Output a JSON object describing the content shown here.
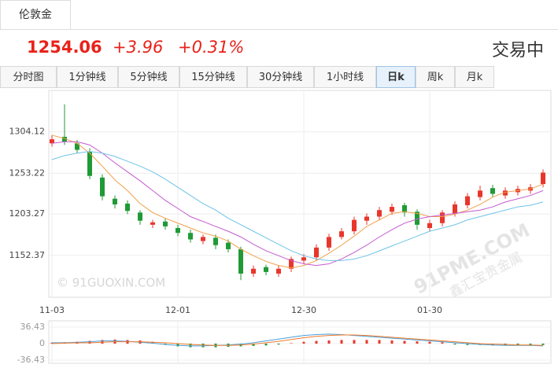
{
  "header": {
    "tab": "伦敦金",
    "price": "1254.06",
    "change": "+3.96",
    "change_pct": "+0.31%",
    "status": "交易中"
  },
  "tabs": [
    "分时图",
    "1分钟线",
    "5分钟线",
    "15分钟线",
    "30分钟线",
    "1小时线",
    "日k",
    "周k",
    "月k"
  ],
  "active_tab": 6,
  "watermarks": [
    "© 91GUOXIN.COM",
    "91PME.COM",
    "鑫汇宝贵金属"
  ],
  "chart_data": [
    {
      "type": "candlestick",
      "categories": [
        "11-03",
        null,
        null,
        null,
        null,
        null,
        null,
        null,
        null,
        null,
        "12-01",
        null,
        null,
        null,
        null,
        null,
        null,
        null,
        null,
        null,
        "12-30",
        null,
        null,
        null,
        null,
        null,
        null,
        null,
        null,
        null,
        "01-30",
        null,
        null,
        null,
        null,
        null,
        null,
        null,
        null,
        null
      ],
      "open": [
        1290,
        1298,
        1290,
        1280,
        1248,
        1222,
        1216,
        1205,
        1190,
        1194,
        1186,
        1180,
        1170,
        1174,
        1168,
        1160,
        1130,
        1138,
        1130,
        1136,
        1146,
        1150,
        1162,
        1175,
        1182,
        1195,
        1200,
        1206,
        1214,
        1206,
        1186,
        1192,
        1204,
        1214,
        1224,
        1235,
        1226,
        1230,
        1232,
        1240
      ],
      "high": [
        1300,
        1338,
        1294,
        1284,
        1252,
        1226,
        1220,
        1208,
        1196,
        1198,
        1190,
        1184,
        1178,
        1178,
        1172,
        1163,
        1140,
        1141,
        1140,
        1151,
        1154,
        1166,
        1179,
        1186,
        1200,
        1204,
        1212,
        1216,
        1217,
        1209,
        1196,
        1208,
        1219,
        1229,
        1238,
        1239,
        1236,
        1238,
        1240,
        1258
      ],
      "low": [
        1286,
        1288,
        1278,
        1246,
        1220,
        1210,
        1203,
        1190,
        1186,
        1184,
        1176,
        1168,
        1166,
        1160,
        1156,
        1122,
        1126,
        1128,
        1126,
        1132,
        1142,
        1146,
        1158,
        1172,
        1178,
        1190,
        1196,
        1202,
        1200,
        1184,
        1182,
        1188,
        1200,
        1210,
        1220,
        1224,
        1222,
        1226,
        1228,
        1236
      ],
      "close": [
        1295,
        1292,
        1282,
        1250,
        1225,
        1215,
        1207,
        1195,
        1193,
        1188,
        1180,
        1172,
        1175,
        1165,
        1160,
        1130,
        1136,
        1132,
        1136,
        1148,
        1150,
        1162,
        1175,
        1182,
        1196,
        1200,
        1208,
        1212,
        1205,
        1190,
        1192,
        1205,
        1215,
        1225,
        1232,
        1228,
        1232,
        1234,
        1236,
        1254.06
      ],
      "up_color": "#e8362c",
      "down_color": "#1f9a36",
      "series": [
        {
          "color": "#f0a04a",
          "values": [
            1300,
            1296,
            1290,
            1278,
            1262,
            1245,
            1232,
            1216,
            1205,
            1198,
            1192,
            1186,
            1180,
            1176,
            1170,
            1160,
            1152,
            1145,
            1140,
            1137,
            1140,
            1146,
            1155,
            1165,
            1176,
            1188,
            1196,
            1204,
            1206,
            1204,
            1200,
            1200,
            1203,
            1208,
            1215,
            1224,
            1230,
            1232,
            1234,
            1240
          ]
        },
        {
          "color": "#c45ad0",
          "values": [
            1290,
            1292,
            1292,
            1288,
            1278,
            1266,
            1255,
            1244,
            1232,
            1220,
            1210,
            1200,
            1194,
            1188,
            1182,
            1175,
            1166,
            1158,
            1152,
            1146,
            1142,
            1140,
            1142,
            1148,
            1156,
            1165,
            1175,
            1184,
            1192,
            1197,
            1200,
            1202,
            1204,
            1206,
            1208,
            1212,
            1218,
            1222,
            1226,
            1232
          ]
        },
        {
          "color": "#6ec3e8",
          "values": [
            1270,
            1275,
            1278,
            1280,
            1278,
            1274,
            1268,
            1262,
            1255,
            1246,
            1236,
            1226,
            1216,
            1208,
            1198,
            1190,
            1182,
            1174,
            1166,
            1158,
            1152,
            1148,
            1146,
            1146,
            1148,
            1152,
            1158,
            1164,
            1170,
            1176,
            1182,
            1186,
            1190,
            1196,
            1200,
            1204,
            1208,
            1212,
            1214,
            1218
          ]
        }
      ],
      "ylim": [
        1101,
        1355
      ],
      "yticks": [
        1152.37,
        1203.27,
        1253.22,
        1304.12
      ],
      "grid": true
    },
    {
      "type": "macd",
      "values": [
        2,
        3,
        4,
        6,
        8,
        9,
        8,
        7,
        4,
        -2,
        -6,
        -8,
        -8,
        -8,
        -7,
        -6,
        -5,
        -4,
        -2,
        1,
        4,
        6,
        7,
        8,
        8,
        8,
        8,
        7,
        6,
        5,
        4,
        3,
        -2,
        -3,
        -3,
        -4,
        -4,
        -4,
        -4,
        -3
      ],
      "up_color": "#e8362c",
      "down_color": "#1f9a36",
      "series": [
        {
          "color": "#4a9fd8",
          "values": [
            2,
            2,
            3,
            4,
            6,
            6,
            5,
            3,
            1,
            -2,
            -4,
            -5,
            -5,
            -4,
            -3,
            -1,
            2,
            6,
            10,
            14,
            18,
            20,
            21,
            20,
            18,
            16,
            14,
            12,
            10,
            8,
            6,
            4,
            2,
            0,
            -2,
            -3,
            -4,
            -4,
            -4,
            -5
          ]
        },
        {
          "color": "#f07a2c",
          "values": [
            0,
            1,
            2,
            2,
            3,
            4,
            4,
            4,
            3,
            2,
            0,
            -2,
            -3,
            -4,
            -4,
            -3,
            -1,
            2,
            5,
            9,
            13,
            16,
            18,
            19,
            19,
            18,
            16,
            14,
            12,
            10,
            8,
            6,
            4,
            2,
            0,
            -1,
            -2,
            -3,
            -3,
            -4
          ]
        }
      ],
      "ylim": [
        -43.4,
        50.3
      ],
      "yticks": [
        -36.43,
        0,
        36.43
      ]
    }
  ]
}
